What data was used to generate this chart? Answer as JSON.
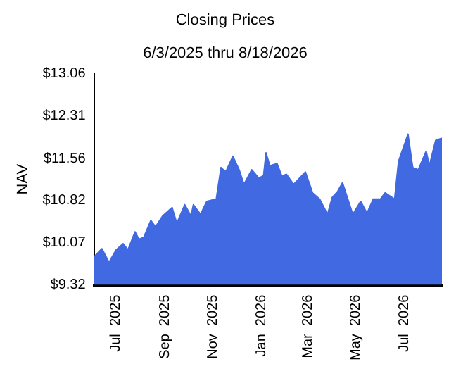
{
  "chart_data": {
    "type": "area",
    "title": "Closing Prices",
    "subtitle": "6/3/2025 thru 8/18/2026",
    "ylabel": "NAV",
    "x": [
      "2025-06-03",
      "2025-06-04",
      "2025-06-13",
      "2025-06-22",
      "2025-07-01",
      "2025-07-10",
      "2025-07-16",
      "2025-07-25",
      "2025-07-30",
      "2025-08-05",
      "2025-08-14",
      "2025-08-20",
      "2025-08-29",
      "2025-09-10",
      "2025-09-16",
      "2025-09-26",
      "2025-10-04",
      "2025-10-07",
      "2025-10-16",
      "2025-10-24",
      "2025-11-05",
      "2025-11-11",
      "2025-11-17",
      "2025-11-26",
      "2025-12-04",
      "2025-12-10",
      "2025-12-20",
      "2025-12-29",
      "2026-01-04",
      "2026-01-07",
      "2026-01-12",
      "2026-01-21",
      "2026-01-27",
      "2026-02-02",
      "2026-02-11",
      "2026-02-26",
      "2026-03-07",
      "2026-03-16",
      "2026-03-26",
      "2026-04-01",
      "2026-04-08",
      "2026-04-14",
      "2026-04-27",
      "2026-05-07",
      "2026-05-15",
      "2026-05-23",
      "2026-06-01",
      "2026-06-07",
      "2026-06-19",
      "2026-06-24",
      "2026-07-06",
      "2026-07-12",
      "2026-07-19",
      "2026-07-29",
      "2026-08-02",
      "2026-08-10",
      "2026-08-18"
    ],
    "series": [
      {
        "color": "#4169e1",
        "values": [
          9.8,
          9.83,
          9.96,
          9.72,
          9.94,
          10.05,
          9.94,
          10.26,
          10.13,
          10.16,
          10.46,
          10.35,
          10.54,
          10.69,
          10.41,
          10.74,
          10.54,
          10.74,
          10.57,
          10.8,
          10.84,
          11.4,
          11.32,
          11.6,
          11.36,
          11.1,
          11.36,
          11.21,
          11.26,
          11.66,
          11.43,
          11.47,
          11.25,
          11.28,
          11.1,
          11.32,
          10.95,
          10.84,
          10.57,
          10.87,
          10.98,
          11.13,
          10.57,
          10.8,
          10.59,
          10.84,
          10.84,
          10.95,
          10.84,
          11.51,
          11.99,
          11.4,
          11.36,
          11.69,
          11.43,
          11.88,
          11.92
        ]
      }
    ],
    "xlim": [
      "2025-06-03",
      "2026-08-18"
    ],
    "xticks": [
      {
        "value": "2025-07-01",
        "label": "Jul  2025"
      },
      {
        "value": "2025-09-01",
        "label": "Sep  2025"
      },
      {
        "value": "2025-11-01",
        "label": "Nov  2025"
      },
      {
        "value": "2026-01-01",
        "label": "Jan  2026"
      },
      {
        "value": "2026-03-01",
        "label": "Mar  2026"
      },
      {
        "value": "2026-05-01",
        "label": "May  2026"
      },
      {
        "value": "2026-07-01",
        "label": "Jul  2026"
      }
    ],
    "ylim": [
      9.32,
      13.06
    ],
    "yticks": [
      {
        "value": 9.32,
        "label": "$9.32"
      },
      {
        "value": 10.07,
        "label": "$10.07"
      },
      {
        "value": 10.82,
        "label": "$10.82"
      },
      {
        "value": 11.56,
        "label": "$11.56"
      },
      {
        "value": 12.31,
        "label": "$12.31"
      },
      {
        "value": 13.06,
        "label": "$13.06"
      }
    ],
    "grid": false,
    "legend": false
  }
}
